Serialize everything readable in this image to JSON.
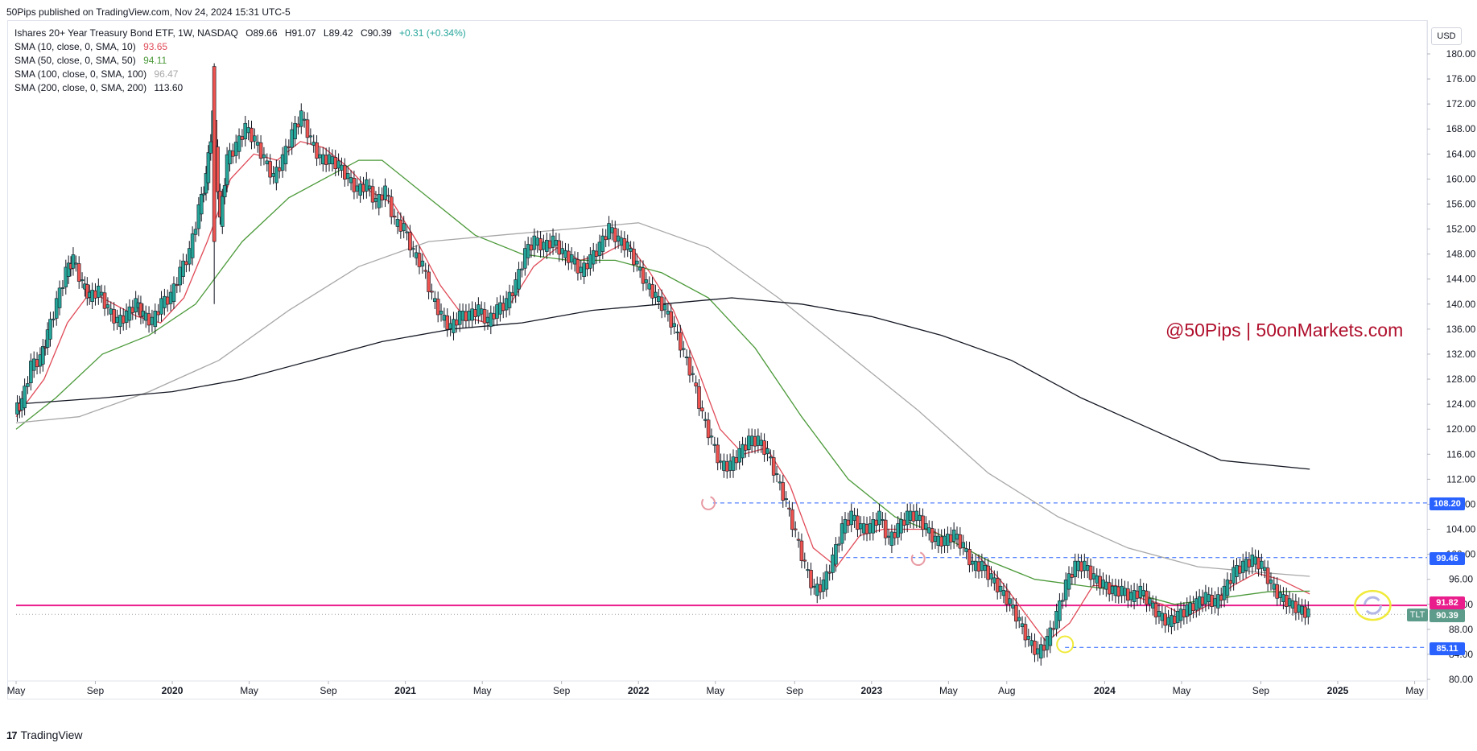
{
  "publisher": "50Pips published on TradingView.com, Nov 24, 2024 15:31 UTC-5",
  "legend": {
    "symbol_line": "Ishares 20+ Year Treasury Bond ETF, 1W, NASDAQ",
    "ohlc": {
      "open": "O89.66",
      "high": "H91.07",
      "low": "L89.42",
      "close": "C90.39",
      "change": "+0.31 (+0.34%)"
    },
    "smas": [
      {
        "label": "SMA (10, close, 0, SMA, 10)",
        "value": "93.65",
        "color": "#e04b58"
      },
      {
        "label": "SMA (50, close, 0, SMA, 50)",
        "value": "94.11",
        "color": "#4c9a3a"
      },
      {
        "label": "SMA (100, close, 0, SMA, 100)",
        "value": "96.47",
        "color": "#a8a8a8"
      },
      {
        "label": "SMA (200, close, 0, SMA, 200)",
        "value": "113.60",
        "color": "#131722"
      }
    ]
  },
  "watermark": "@50Pips | 50onMarkets.com",
  "currency": "USD",
  "ticker": "TLT",
  "price_tags": [
    {
      "value": "108.20",
      "color": "#2962ff"
    },
    {
      "value": "99.46",
      "color": "#2962ff"
    },
    {
      "value": "91.82",
      "color": "#e91e8c"
    },
    {
      "value": "90.39",
      "color": "#5d9b8a"
    },
    {
      "value": "85.11",
      "color": "#2962ff"
    }
  ],
  "footer": "TradingView",
  "colors": {
    "up": "#26a69a",
    "down": "#ef5350",
    "magenta_line": "#e91e8c",
    "level_line": "#2962ff"
  },
  "chart_data": {
    "type": "line",
    "title": "Ishares 20+ Year Treasury Bond ETF, 1W, NASDAQ",
    "y_ticks": [
      "180.00",
      "176.00",
      "172.00",
      "168.00",
      "164.00",
      "160.00",
      "156.00",
      "152.00",
      "148.00",
      "144.00",
      "140.00",
      "136.00",
      "132.00",
      "128.00",
      "124.00",
      "120.00",
      "116.00",
      "112.00",
      "108.00",
      "104.00",
      "100.00",
      "96.00",
      "92.00",
      "88.00",
      "84.00",
      "80.00"
    ],
    "x_ticks": [
      {
        "label": "May",
        "t": 2019.33,
        "bold": false
      },
      {
        "label": "Sep",
        "t": 2019.67,
        "bold": false
      },
      {
        "label": "2020",
        "t": 2020.0,
        "bold": true
      },
      {
        "label": "May",
        "t": 2020.33,
        "bold": false
      },
      {
        "label": "Sep",
        "t": 2020.67,
        "bold": false
      },
      {
        "label": "2021",
        "t": 2021.0,
        "bold": true
      },
      {
        "label": "May",
        "t": 2021.33,
        "bold": false
      },
      {
        "label": "Sep",
        "t": 2021.67,
        "bold": false
      },
      {
        "label": "2022",
        "t": 2022.0,
        "bold": true
      },
      {
        "label": "May",
        "t": 2022.33,
        "bold": false
      },
      {
        "label": "Sep",
        "t": 2022.67,
        "bold": false
      },
      {
        "label": "2023",
        "t": 2023.0,
        "bold": true
      },
      {
        "label": "May",
        "t": 2023.33,
        "bold": false
      },
      {
        "label": "Aug",
        "t": 2023.58,
        "bold": false
      },
      {
        "label": "2024",
        "t": 2024.0,
        "bold": true
      },
      {
        "label": "May",
        "t": 2024.33,
        "bold": false
      },
      {
        "label": "Sep",
        "t": 2024.67,
        "bold": false
      },
      {
        "label": "2025",
        "t": 2025.0,
        "bold": true
      },
      {
        "label": "May",
        "t": 2025.33,
        "bold": false
      }
    ],
    "ylim": [
      78,
      183
    ],
    "xlim": [
      2019.33,
      2025.4
    ],
    "price_path": [
      [
        2019.33,
        123
      ],
      [
        2019.36,
        124
      ],
      [
        2019.4,
        130
      ],
      [
        2019.44,
        131
      ],
      [
        2019.47,
        135
      ],
      [
        2019.51,
        140
      ],
      [
        2019.55,
        145
      ],
      [
        2019.58,
        147
      ],
      [
        2019.62,
        143
      ],
      [
        2019.65,
        141
      ],
      [
        2019.69,
        142
      ],
      [
        2019.73,
        139
      ],
      [
        2019.77,
        137
      ],
      [
        2019.81,
        138
      ],
      [
        2019.85,
        140
      ],
      [
        2019.88,
        138
      ],
      [
        2019.92,
        137
      ],
      [
        2019.96,
        140
      ],
      [
        2020.0,
        141
      ],
      [
        2020.04,
        145
      ],
      [
        2020.08,
        148
      ],
      [
        2020.12,
        155
      ],
      [
        2020.15,
        160
      ],
      [
        2020.18,
        170
      ],
      [
        2020.21,
        153
      ],
      [
        2020.24,
        163
      ],
      [
        2020.28,
        165
      ],
      [
        2020.32,
        168
      ],
      [
        2020.36,
        166
      ],
      [
        2020.4,
        163
      ],
      [
        2020.44,
        160
      ],
      [
        2020.48,
        163
      ],
      [
        2020.52,
        167
      ],
      [
        2020.56,
        170
      ],
      [
        2020.6,
        166
      ],
      [
        2020.64,
        163
      ],
      [
        2020.68,
        163
      ],
      [
        2020.72,
        162
      ],
      [
        2020.76,
        160
      ],
      [
        2020.8,
        158
      ],
      [
        2020.84,
        159
      ],
      [
        2020.88,
        156
      ],
      [
        2020.92,
        158
      ],
      [
        2020.96,
        153
      ],
      [
        2021.0,
        152
      ],
      [
        2021.04,
        148
      ],
      [
        2021.08,
        146
      ],
      [
        2021.12,
        141
      ],
      [
        2021.16,
        138
      ],
      [
        2021.2,
        136
      ],
      [
        2021.24,
        138
      ],
      [
        2021.28,
        138
      ],
      [
        2021.32,
        139
      ],
      [
        2021.36,
        137
      ],
      [
        2021.4,
        139
      ],
      [
        2021.44,
        140
      ],
      [
        2021.48,
        143
      ],
      [
        2021.52,
        148
      ],
      [
        2021.56,
        150
      ],
      [
        2021.6,
        149
      ],
      [
        2021.64,
        150
      ],
      [
        2021.68,
        148
      ],
      [
        2021.72,
        147
      ],
      [
        2021.76,
        145
      ],
      [
        2021.8,
        147
      ],
      [
        2021.84,
        149
      ],
      [
        2021.88,
        152
      ],
      [
        2021.92,
        150
      ],
      [
        2021.96,
        149
      ],
      [
        2022.0,
        146
      ],
      [
        2022.04,
        143
      ],
      [
        2022.08,
        141
      ],
      [
        2022.12,
        139
      ],
      [
        2022.16,
        136
      ],
      [
        2022.2,
        132
      ],
      [
        2022.24,
        128
      ],
      [
        2022.28,
        122
      ],
      [
        2022.32,
        118
      ],
      [
        2022.36,
        114
      ],
      [
        2022.4,
        114
      ],
      [
        2022.44,
        116
      ],
      [
        2022.48,
        118
      ],
      [
        2022.52,
        118
      ],
      [
        2022.56,
        116
      ],
      [
        2022.6,
        112
      ],
      [
        2022.64,
        108
      ],
      [
        2022.68,
        103
      ],
      [
        2022.72,
        98
      ],
      [
        2022.76,
        94
      ],
      [
        2022.8,
        95
      ],
      [
        2022.84,
        99
      ],
      [
        2022.88,
        104
      ],
      [
        2022.92,
        106
      ],
      [
        2022.96,
        104
      ],
      [
        2023.0,
        104
      ],
      [
        2023.04,
        106
      ],
      [
        2023.08,
        102
      ],
      [
        2023.12,
        104
      ],
      [
        2023.16,
        106
      ],
      [
        2023.2,
        106
      ],
      [
        2023.24,
        104
      ],
      [
        2023.28,
        102
      ],
      [
        2023.32,
        102
      ],
      [
        2023.36,
        103
      ],
      [
        2023.4,
        101
      ],
      [
        2023.44,
        98
      ],
      [
        2023.48,
        98
      ],
      [
        2023.52,
        96
      ],
      [
        2023.56,
        94
      ],
      [
        2023.6,
        92
      ],
      [
        2023.64,
        89
      ],
      [
        2023.68,
        86
      ],
      [
        2023.72,
        84
      ],
      [
        2023.76,
        86
      ],
      [
        2023.8,
        90
      ],
      [
        2023.84,
        95
      ],
      [
        2023.88,
        98
      ],
      [
        2023.92,
        98
      ],
      [
        2023.96,
        96
      ],
      [
        2024.0,
        95
      ],
      [
        2024.04,
        94
      ],
      [
        2024.08,
        94
      ],
      [
        2024.12,
        93
      ],
      [
        2024.16,
        94
      ],
      [
        2024.2,
        92
      ],
      [
        2024.24,
        90
      ],
      [
        2024.28,
        89
      ],
      [
        2024.32,
        90
      ],
      [
        2024.36,
        91
      ],
      [
        2024.4,
        92
      ],
      [
        2024.44,
        93
      ],
      [
        2024.48,
        92
      ],
      [
        2024.52,
        94
      ],
      [
        2024.56,
        97
      ],
      [
        2024.6,
        98
      ],
      [
        2024.64,
        99
      ],
      [
        2024.68,
        98
      ],
      [
        2024.72,
        95
      ],
      [
        2024.76,
        93
      ],
      [
        2024.8,
        92
      ],
      [
        2024.84,
        91
      ],
      [
        2024.88,
        90.39
      ]
    ],
    "series": [
      {
        "name": "SMA (10, close, 0, SMA, 10)",
        "color": "#e04b58",
        "points": [
          [
            2019.33,
            122
          ],
          [
            2019.45,
            128
          ],
          [
            2019.55,
            137
          ],
          [
            2019.65,
            142
          ],
          [
            2019.75,
            140
          ],
          [
            2019.85,
            138
          ],
          [
            2019.95,
            137
          ],
          [
            2020.05,
            141
          ],
          [
            2020.15,
            150
          ],
          [
            2020.25,
            160
          ],
          [
            2020.35,
            164
          ],
          [
            2020.45,
            163
          ],
          [
            2020.55,
            166
          ],
          [
            2020.65,
            165
          ],
          [
            2020.75,
            162
          ],
          [
            2020.85,
            158
          ],
          [
            2020.95,
            156
          ],
          [
            2021.05,
            150
          ],
          [
            2021.15,
            143
          ],
          [
            2021.25,
            138
          ],
          [
            2021.35,
            137
          ],
          [
            2021.45,
            140
          ],
          [
            2021.55,
            146
          ],
          [
            2021.65,
            149
          ],
          [
            2021.75,
            147
          ],
          [
            2021.85,
            148
          ],
          [
            2021.95,
            150
          ],
          [
            2022.05,
            145
          ],
          [
            2022.15,
            139
          ],
          [
            2022.25,
            130
          ],
          [
            2022.35,
            120
          ],
          [
            2022.45,
            116
          ],
          [
            2022.55,
            117
          ],
          [
            2022.65,
            111
          ],
          [
            2022.75,
            101
          ],
          [
            2022.85,
            98
          ],
          [
            2022.95,
            103
          ],
          [
            2023.05,
            104
          ],
          [
            2023.15,
            104
          ],
          [
            2023.25,
            104
          ],
          [
            2023.35,
            102
          ],
          [
            2023.45,
            100
          ],
          [
            2023.55,
            96
          ],
          [
            2023.65,
            91
          ],
          [
            2023.75,
            86
          ],
          [
            2023.85,
            89
          ],
          [
            2023.95,
            95
          ],
          [
            2024.05,
            95
          ],
          [
            2024.15,
            93
          ],
          [
            2024.25,
            92
          ],
          [
            2024.35,
            90
          ],
          [
            2024.45,
            92
          ],
          [
            2024.55,
            95
          ],
          [
            2024.65,
            97
          ],
          [
            2024.75,
            96
          ],
          [
            2024.88,
            93.65
          ]
        ]
      },
      {
        "name": "SMA (50, close, 0, SMA, 50)",
        "color": "#4c9a3a",
        "points": [
          [
            2019.33,
            120
          ],
          [
            2019.5,
            125
          ],
          [
            2019.7,
            132
          ],
          [
            2019.9,
            135
          ],
          [
            2020.1,
            140
          ],
          [
            2020.3,
            150
          ],
          [
            2020.5,
            157
          ],
          [
            2020.7,
            161
          ],
          [
            2020.8,
            163
          ],
          [
            2020.9,
            163
          ],
          [
            2021.1,
            157
          ],
          [
            2021.3,
            151
          ],
          [
            2021.5,
            148
          ],
          [
            2021.7,
            147
          ],
          [
            2021.9,
            147
          ],
          [
            2022.1,
            145
          ],
          [
            2022.3,
            141
          ],
          [
            2022.5,
            133
          ],
          [
            2022.7,
            122
          ],
          [
            2022.9,
            112
          ],
          [
            2023.1,
            106
          ],
          [
            2023.3,
            103
          ],
          [
            2023.5,
            99
          ],
          [
            2023.7,
            96
          ],
          [
            2023.9,
            95
          ],
          [
            2024.1,
            94
          ],
          [
            2024.3,
            92
          ],
          [
            2024.5,
            93
          ],
          [
            2024.7,
            94
          ],
          [
            2024.88,
            94.11
          ]
        ]
      },
      {
        "name": "SMA (100, close, 0, SMA, 100)",
        "color": "#a8a8a8",
        "points": [
          [
            2019.33,
            121
          ],
          [
            2019.6,
            122
          ],
          [
            2019.9,
            126
          ],
          [
            2020.2,
            131
          ],
          [
            2020.5,
            139
          ],
          [
            2020.8,
            146
          ],
          [
            2021.1,
            150
          ],
          [
            2021.4,
            151
          ],
          [
            2021.7,
            152
          ],
          [
            2022.0,
            153
          ],
          [
            2022.3,
            149
          ],
          [
            2022.6,
            141
          ],
          [
            2022.9,
            132
          ],
          [
            2023.2,
            123
          ],
          [
            2023.5,
            113
          ],
          [
            2023.8,
            106
          ],
          [
            2024.1,
            101
          ],
          [
            2024.4,
            98
          ],
          [
            2024.7,
            97
          ],
          [
            2024.88,
            96.47
          ]
        ]
      },
      {
        "name": "SMA (200, close, 0, SMA, 200)",
        "color": "#131722",
        "points": [
          [
            2019.33,
            124
          ],
          [
            2019.7,
            125
          ],
          [
            2020.0,
            126
          ],
          [
            2020.3,
            128
          ],
          [
            2020.6,
            131
          ],
          [
            2020.9,
            134
          ],
          [
            2021.2,
            136
          ],
          [
            2021.5,
            137
          ],
          [
            2021.8,
            139
          ],
          [
            2022.1,
            140
          ],
          [
            2022.4,
            141
          ],
          [
            2022.7,
            140
          ],
          [
            2023.0,
            138
          ],
          [
            2023.3,
            135
          ],
          [
            2023.6,
            131
          ],
          [
            2023.9,
            125
          ],
          [
            2024.2,
            120
          ],
          [
            2024.5,
            115
          ],
          [
            2024.88,
            113.6
          ]
        ]
      }
    ],
    "levels": [
      {
        "value": 108.2,
        "start": 2022.32,
        "color": "#2962ff",
        "style": "dashed"
      },
      {
        "value": 99.46,
        "start": 2022.86,
        "color": "#2962ff",
        "style": "dashed"
      },
      {
        "value": 91.82,
        "start": 2019.33,
        "color": "#e91e8c",
        "style": "solid"
      },
      {
        "value": 90.39,
        "start": 2019.33,
        "color": "#9aa0a6",
        "style": "dotted"
      },
      {
        "value": 85.11,
        "start": 2023.83,
        "color": "#2962ff",
        "style": "dashed"
      }
    ],
    "markers": [
      {
        "kind": "reload",
        "t": 2022.3,
        "value": 108.2,
        "color": "#e89aa3"
      },
      {
        "kind": "reload",
        "t": 2023.2,
        "value": 99.3,
        "color": "#e89aa3"
      },
      {
        "kind": "ring",
        "t": 2023.83,
        "value": 85.6,
        "color": "#f0ea3a"
      },
      {
        "kind": "ring-reload",
        "t": 2025.15,
        "value": 91.82,
        "color": "#f0ea3a"
      }
    ]
  }
}
